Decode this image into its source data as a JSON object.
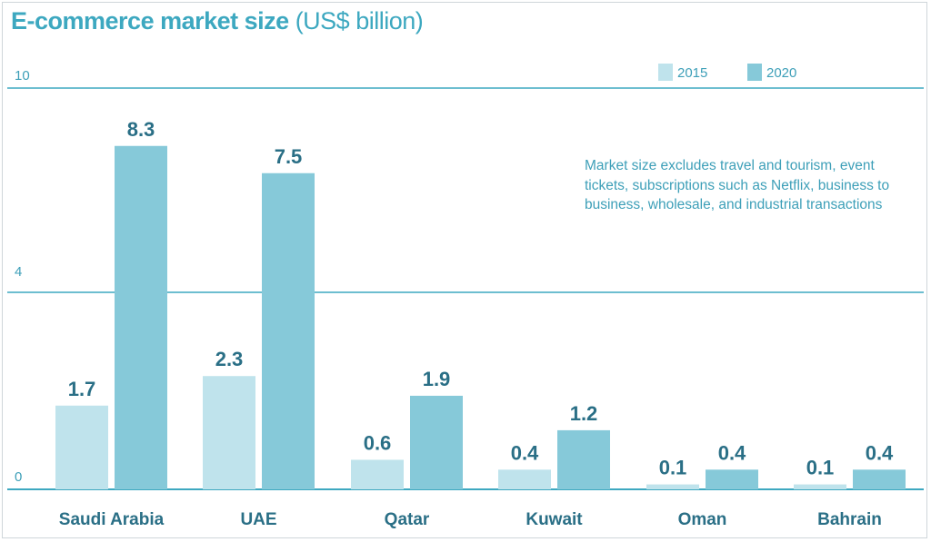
{
  "title": "E-commerce market size",
  "title_unit": "(US$ billion)",
  "note": "Market size excludes travel and tourism, event tickets, subscriptions such as Netflix, business to business, wholesale, and industrial transactions",
  "chart_data": {
    "type": "bar",
    "title": "E-commerce market size (US$ billion)",
    "xlabel": "",
    "ylabel": "",
    "categories": [
      "Saudi Arabia",
      "UAE",
      "Qatar",
      "Kuwait",
      "Oman",
      "Bahrain"
    ],
    "series": [
      {
        "name": "2015",
        "values": [
          1.7,
          2.3,
          0.6,
          0.4,
          0.1,
          0.1
        ],
        "labels": [
          "1.7",
          "2.3",
          "0.6",
          "0.4",
          "0.1",
          "0.1"
        ],
        "color": "#bfe3ec"
      },
      {
        "name": "2020",
        "values": [
          8.3,
          7.5,
          1.9,
          1.2,
          0.4,
          0.4
        ],
        "labels": [
          "8.3",
          "7.5",
          "1.9",
          "1.2",
          "0.4",
          "0.4"
        ],
        "color": "#86c9d9"
      }
    ],
    "yticks": [
      "0",
      "4",
      "10"
    ],
    "ylim": [
      0,
      10
    ],
    "axis_break": "between 4 and 10",
    "grid": true,
    "legend_position": "top-right",
    "axis_color": "#3da8c0",
    "label_color": "#2a6f86"
  }
}
